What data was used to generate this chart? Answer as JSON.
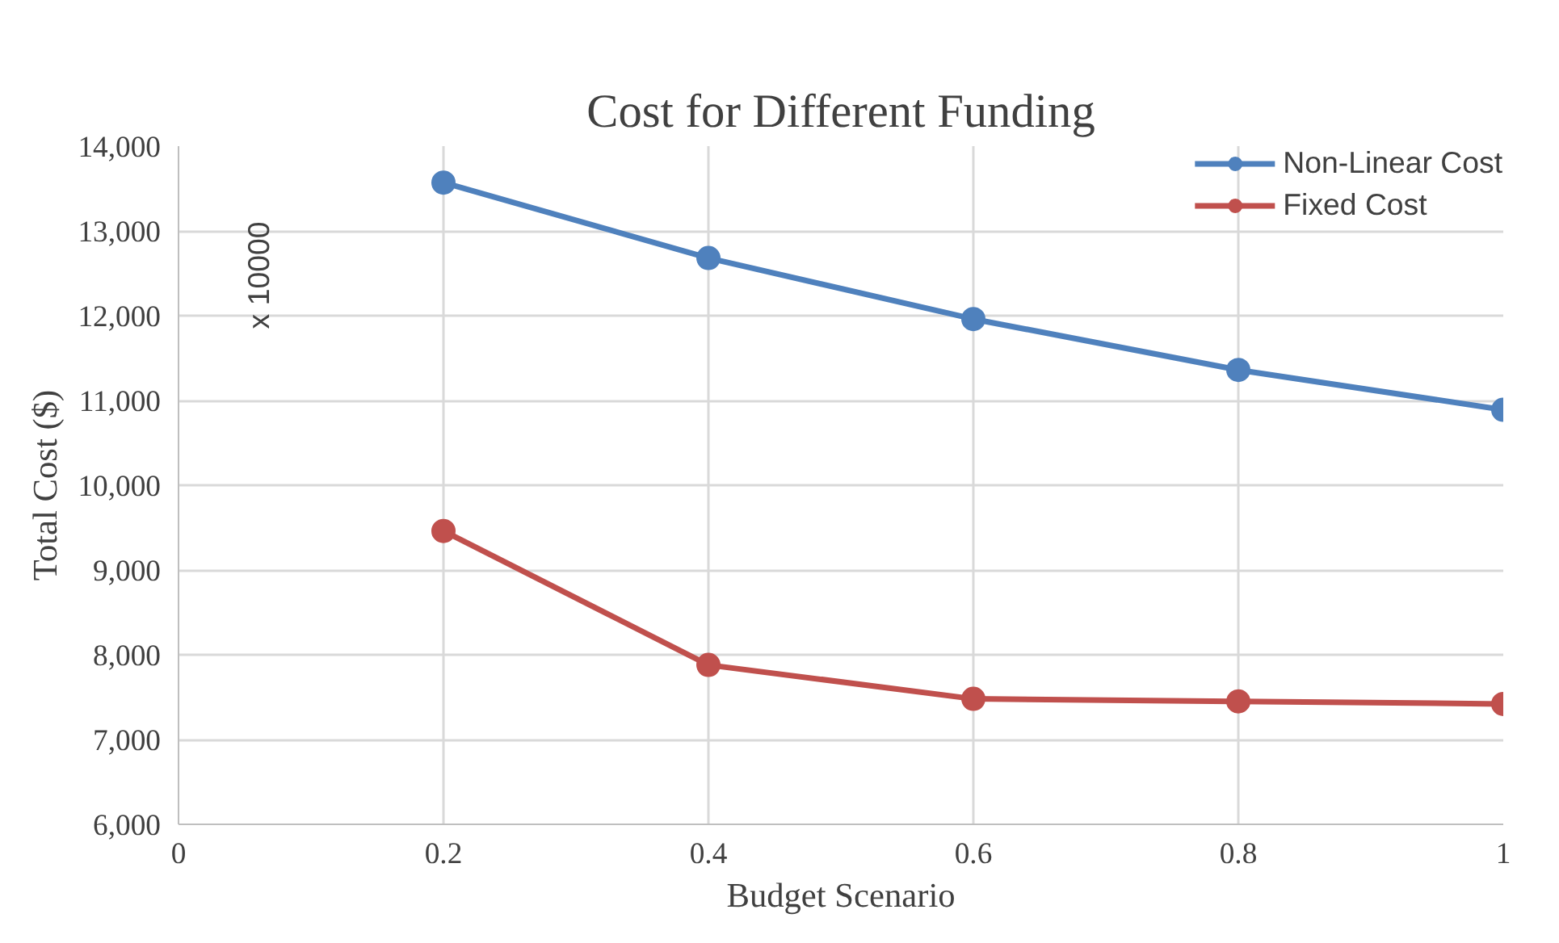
{
  "chart_data": {
    "type": "line",
    "title": "Cost for Different Funding",
    "xlabel": "Budget Scenario",
    "ylabel": "Total Cost ($)",
    "annotations": [
      "x 10000"
    ],
    "x": [
      0.2,
      0.4,
      0.6,
      0.8,
      1
    ],
    "series": [
      {
        "name": "Non-Linear Cost",
        "color": "#4f81bd",
        "values": [
          13570,
          12680,
          11960,
          11360,
          10890
        ]
      },
      {
        "name": "Fixed Cost",
        "color": "#c0504d",
        "values": [
          9460,
          7880,
          7480,
          7450,
          7420
        ]
      }
    ],
    "xlim": [
      0,
      1
    ],
    "xticks": [
      0,
      0.2,
      0.4,
      0.6,
      0.8,
      1
    ],
    "ylim": [
      6000,
      14000
    ],
    "yticks": [
      {
        "value": 6000,
        "label": "6,000"
      },
      {
        "value": 7000,
        "label": "7,000"
      },
      {
        "value": 8000,
        "label": "8,000"
      },
      {
        "value": 9000,
        "label": "9,000"
      },
      {
        "value": 10000,
        "label": "10,000"
      },
      {
        "value": 11000,
        "label": "11,000"
      },
      {
        "value": 12000,
        "label": "12,000"
      },
      {
        "value": 13000,
        "label": "13,000"
      },
      {
        "value": 14000,
        "label": "14,000"
      }
    ],
    "grid": true,
    "legend": "top right",
    "marker": "circle",
    "line_style": "solid"
  }
}
